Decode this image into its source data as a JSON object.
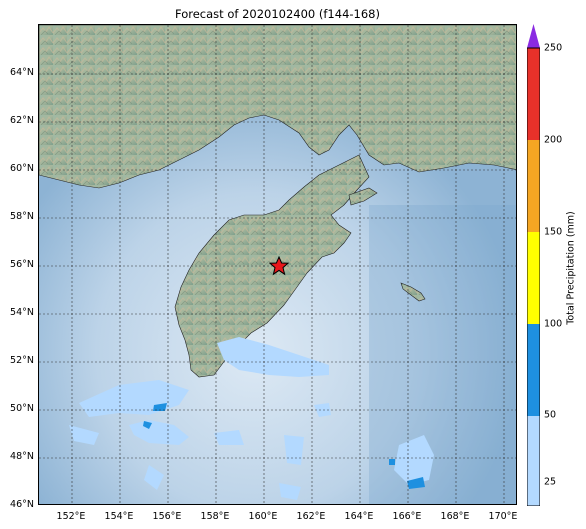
{
  "title": "Forecast of 2020102400 (f144-168)",
  "lat_labels": [
    "64°N",
    "62°N",
    "60°N",
    "58°N",
    "56°N",
    "54°N",
    "52°N",
    "50°N",
    "48°N",
    "46°N"
  ],
  "lon_labels": [
    "152°E",
    "154°E",
    "156°E",
    "158°E",
    "160°E",
    "162°E",
    "164°E",
    "166°E",
    "168°E",
    "170°E"
  ],
  "colorbar": {
    "label": "Total Precipitation (mm)",
    "ticks": [
      "25",
      "50",
      "100",
      "150",
      "200",
      "250"
    ],
    "colors": {
      "c25_50": "#b3d9ff",
      "c50_100": "#1e90e0",
      "c100_150": "#ffff00",
      "c150_200": "#f5a623",
      "c200_250": "#e8312a",
      "over": "#8a2be2"
    }
  },
  "marker": {
    "type": "star",
    "color": "#e8171b",
    "lon": 160.6,
    "lat": 56.0
  },
  "map_data": {
    "extent": {
      "lon_min": 150.6,
      "lon_max": 170.6,
      "lat_min": 46.0,
      "lat_max": 66.0
    },
    "ocean_color": "#b0cde6",
    "land_color": "#8fae9a"
  }
}
